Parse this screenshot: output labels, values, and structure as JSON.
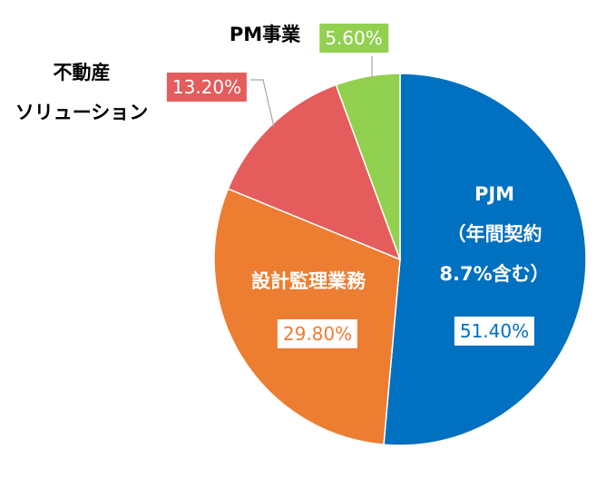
{
  "chart_data": {
    "type": "pie",
    "categories": [
      "PJM\n（年間契約\n8.7%含む）",
      "設計監理業務",
      "不動産\nソリューション",
      "PM事業"
    ],
    "values": [
      51.4,
      29.8,
      13.2,
      5.6
    ],
    "value_labels": [
      "51.40%",
      "29.80%",
      "13.20%",
      "5.60%"
    ],
    "colors": [
      "#0070c0",
      "#ed7d31",
      "#e45c5c",
      "#92d050"
    ]
  }
}
